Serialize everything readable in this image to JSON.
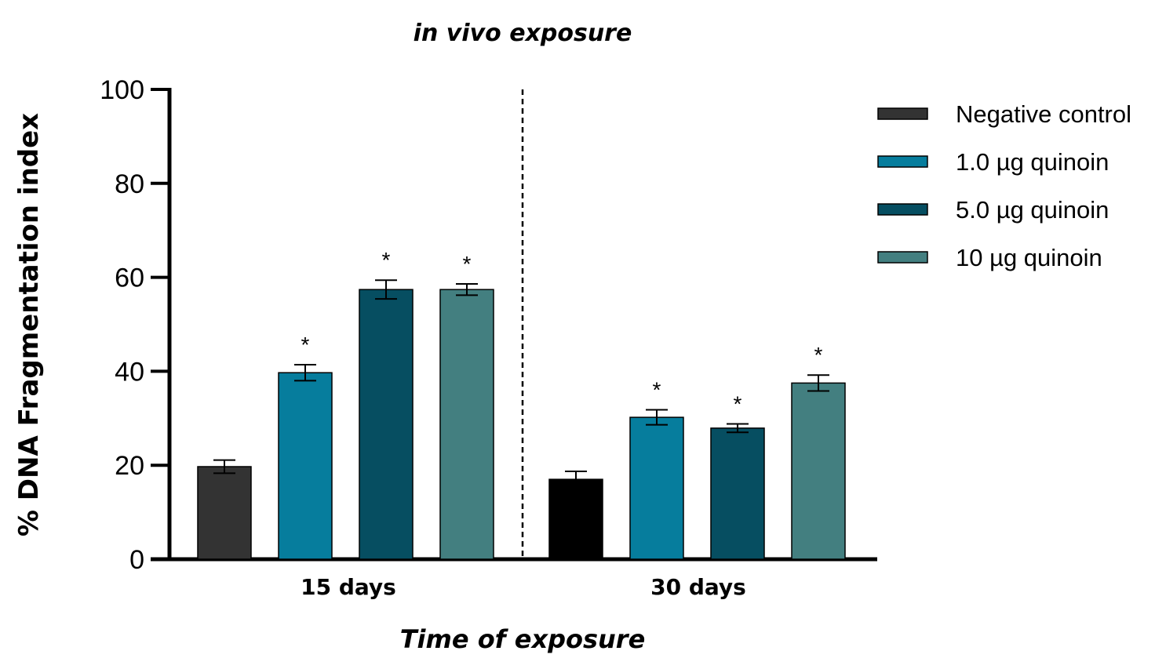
{
  "chart_data": {
    "type": "bar",
    "title": "in vivo exposure",
    "xlabel": "Time of exposure",
    "ylabel": "% DNA Fragmentation index",
    "ylim": [
      0,
      100
    ],
    "yticks": [
      0,
      20,
      40,
      60,
      80,
      100
    ],
    "categories": [
      "15 days",
      "30 days"
    ],
    "significance_marker": "*",
    "legend_position": "right",
    "series": [
      {
        "name": "Negative control",
        "color": "#333333",
        "colors_by_category": [
          "#333333",
          "#000000"
        ],
        "values": [
          19.7,
          17.0
        ],
        "errors": [
          1.4,
          1.7
        ],
        "significant": [
          false,
          false
        ]
      },
      {
        "name": "1.0 µg quinoin",
        "color": "#067d9d",
        "values": [
          39.7,
          30.2
        ],
        "errors": [
          1.7,
          1.6
        ],
        "significant": [
          true,
          true
        ]
      },
      {
        "name": "5.0 µg quinoin",
        "color": "#064e61",
        "values": [
          57.4,
          27.9
        ],
        "errors": [
          2.0,
          0.9
        ],
        "significant": [
          true,
          true
        ]
      },
      {
        "name": "10 µg quinoin",
        "color": "#437f80",
        "values": [
          57.4,
          37.5
        ],
        "errors": [
          1.2,
          1.7
        ],
        "significant": [
          true,
          true
        ]
      }
    ]
  }
}
